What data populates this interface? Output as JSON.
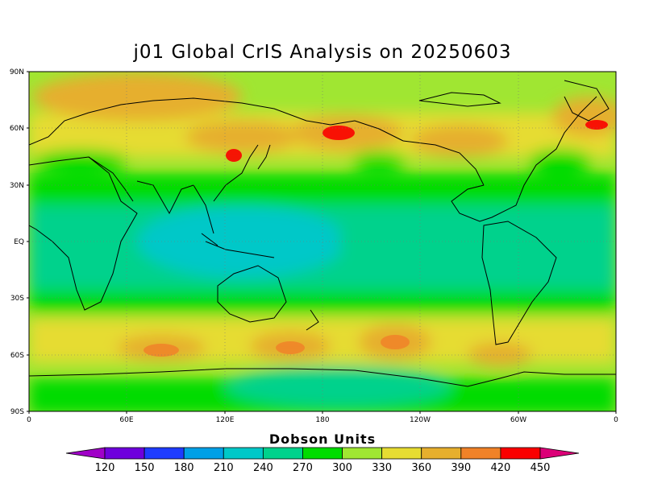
{
  "title": "j01 Global CrIS Analysis on 20250603",
  "colorbar": {
    "label": "Dobson Units",
    "ticks": [
      "120",
      "150",
      "180",
      "210",
      "240",
      "270",
      "300",
      "330",
      "360",
      "390",
      "420",
      "450"
    ],
    "colors": [
      "#a000c8",
      "#6e00dc",
      "#1e3cff",
      "#00a0e6",
      "#00c8c8",
      "#00d28c",
      "#00dc00",
      "#a0e632",
      "#e6dc32",
      "#e6af2d",
      "#f08228",
      "#fa0000",
      "#dc0078"
    ]
  },
  "axes": {
    "lat_labels": [
      "90N",
      "60N",
      "30N",
      "EQ",
      "30S",
      "60S",
      "90S"
    ],
    "lon_labels": [
      "0",
      "60E",
      "120E",
      "180",
      "120W",
      "60W",
      "0"
    ]
  },
  "chart_data": {
    "type": "heatmap",
    "title": "j01 Global CrIS Analysis on 20250603",
    "variable_units": "Dobson Units",
    "x_range": [
      0,
      360
    ],
    "y_range": [
      -90,
      90
    ],
    "value_range": [
      120,
      450
    ],
    "features": [
      {
        "lon": 195,
        "lat": 58,
        "value": 425
      },
      {
        "lon": 80,
        "lat": 45,
        "value": 430
      },
      {
        "lon": 342,
        "lat": 62,
        "value": 420
      },
      {
        "lon": 150,
        "lat": 0,
        "value": 250
      },
      {
        "lon": 220,
        "lat": -50,
        "value": 385
      }
    ]
  }
}
